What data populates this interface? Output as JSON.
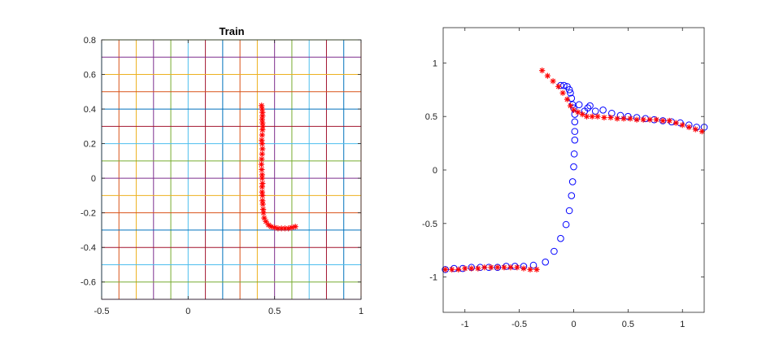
{
  "chart_data": [
    {
      "type": "scatter",
      "title": "Train",
      "xlim": [
        -0.5,
        1
      ],
      "ylim": [
        -0.7,
        0.8
      ],
      "x_ticks": [
        -0.5,
        0,
        0.5,
        1
      ],
      "y_ticks": [
        -0.6,
        -0.4,
        -0.2,
        0,
        0.2,
        0.4,
        0.6,
        0.8
      ],
      "x_tick_labels": [
        "-0.5",
        "0",
        "0.5",
        "1"
      ],
      "y_tick_labels": [
        "-0.6",
        "-0.4",
        "-0.2",
        "0",
        "0.2",
        "0.4",
        "0.6",
        "0.8"
      ],
      "grid": {
        "vertical_lines_x": [
          -0.5,
          -0.4,
          -0.3,
          -0.2,
          -0.1,
          0,
          0.1,
          0.2,
          0.3,
          0.4,
          0.5,
          0.6,
          0.7,
          0.8,
          0.9,
          1.0
        ],
        "horizontal_lines_y": [
          -0.7,
          -0.6,
          -0.5,
          -0.4,
          -0.3,
          -0.2,
          -0.1,
          0,
          0.1,
          0.2,
          0.3,
          0.4,
          0.5,
          0.6,
          0.7,
          0.8
        ],
        "colors": [
          "#0072BD",
          "#D95319",
          "#EDB120",
          "#7E2F8E",
          "#77AC30",
          "#4DBEEE",
          "#A2142F"
        ]
      },
      "series": [
        {
          "marker": "asterisk",
          "color": "#FF0000",
          "x": [
            0.425,
            0.428,
            0.43,
            0.43,
            0.428,
            0.43,
            0.432,
            0.43,
            0.428,
            0.426,
            0.428,
            0.43,
            0.428,
            0.426,
            0.424,
            0.426,
            0.428,
            0.428,
            0.43,
            0.428,
            0.428,
            0.43,
            0.43,
            0.432,
            0.434,
            0.436,
            0.44,
            0.45,
            0.465,
            0.48,
            0.5,
            0.52,
            0.54,
            0.56,
            0.58,
            0.6,
            0.62
          ],
          "y": [
            0.42,
            0.4,
            0.38,
            0.36,
            0.34,
            0.32,
            0.3,
            0.28,
            0.25,
            0.22,
            0.2,
            0.17,
            0.14,
            0.11,
            0.08,
            0.05,
            0.02,
            0.0,
            -0.03,
            -0.05,
            -0.08,
            -0.1,
            -0.13,
            -0.15,
            -0.18,
            -0.2,
            -0.23,
            -0.25,
            -0.27,
            -0.28,
            -0.285,
            -0.29,
            -0.29,
            -0.29,
            -0.29,
            -0.285,
            -0.28
          ]
        }
      ]
    },
    {
      "type": "scatter",
      "title": "",
      "xlim": [
        -1.2,
        1.2
      ],
      "ylim": [
        -1.33,
        1.33
      ],
      "x_ticks": [
        -1,
        -0.5,
        0,
        0.5,
        1
      ],
      "y_ticks": [
        -1,
        -0.5,
        0,
        0.5,
        1
      ],
      "x_tick_labels": [
        "-1",
        "-0.5",
        "0",
        "0.5",
        "1"
      ],
      "y_tick_labels": [
        "-1",
        "-0.5",
        "0",
        "0.5",
        "1"
      ],
      "grid": false,
      "series": [
        {
          "marker": "circle",
          "color": "#0000FF",
          "x": [
            -1.18,
            -1.1,
            -1.02,
            -0.94,
            -0.86,
            -0.78,
            -0.7,
            -0.62,
            -0.54,
            -0.46,
            -0.37,
            -0.26,
            -0.18,
            -0.12,
            -0.07,
            -0.04,
            -0.02,
            -0.01,
            0.0,
            0.005,
            0.01,
            0.01,
            0.01,
            0.01,
            0.0,
            -0.01,
            -0.02,
            -0.03,
            -0.04,
            -0.06,
            -0.09,
            -0.12,
            0.05,
            0.1,
            0.13,
            0.15,
            0.2,
            0.27,
            0.35,
            0.43,
            0.5,
            0.58,
            0.66,
            0.74,
            0.82,
            0.9,
            0.98,
            1.06,
            1.13,
            1.2
          ],
          "y": [
            -0.93,
            -0.92,
            -0.92,
            -0.91,
            -0.91,
            -0.91,
            -0.91,
            -0.9,
            -0.9,
            -0.9,
            -0.89,
            -0.86,
            -0.76,
            -0.64,
            -0.51,
            -0.38,
            -0.24,
            -0.11,
            0.03,
            0.15,
            0.28,
            0.36,
            0.45,
            0.52,
            0.58,
            0.61,
            0.67,
            0.72,
            0.75,
            0.78,
            0.79,
            0.79,
            0.61,
            0.55,
            0.58,
            0.6,
            0.55,
            0.56,
            0.53,
            0.51,
            0.5,
            0.49,
            0.48,
            0.47,
            0.46,
            0.45,
            0.44,
            0.42,
            0.4,
            0.4
          ]
        },
        {
          "marker": "asterisk",
          "color": "#FF0000",
          "x": [
            -1.18,
            -1.12,
            -1.06,
            -1.0,
            -0.94,
            -0.88,
            -0.82,
            -0.76,
            -0.7,
            -0.64,
            -0.58,
            -0.52,
            -0.46,
            -0.4,
            -0.34,
            -0.29,
            -0.24,
            -0.19,
            -0.14,
            -0.1,
            -0.06,
            -0.03,
            0.0,
            0.04,
            0.08,
            0.12,
            0.17,
            0.22,
            0.28,
            0.34,
            0.4,
            0.46,
            0.52,
            0.58,
            0.64,
            0.7,
            0.76,
            0.82,
            0.88,
            0.94,
            1.0,
            1.06,
            1.12,
            1.18
          ],
          "y": [
            -0.93,
            -0.93,
            -0.93,
            -0.92,
            -0.92,
            -0.92,
            -0.91,
            -0.91,
            -0.91,
            -0.91,
            -0.91,
            -0.91,
            -0.92,
            -0.93,
            -0.93,
            0.93,
            0.88,
            0.83,
            0.78,
            0.72,
            0.66,
            0.6,
            0.56,
            0.54,
            0.52,
            0.5,
            0.5,
            0.5,
            0.49,
            0.49,
            0.48,
            0.48,
            0.48,
            0.47,
            0.47,
            0.47,
            0.47,
            0.46,
            0.46,
            0.44,
            0.42,
            0.4,
            0.38,
            0.36
          ]
        }
      ]
    }
  ]
}
